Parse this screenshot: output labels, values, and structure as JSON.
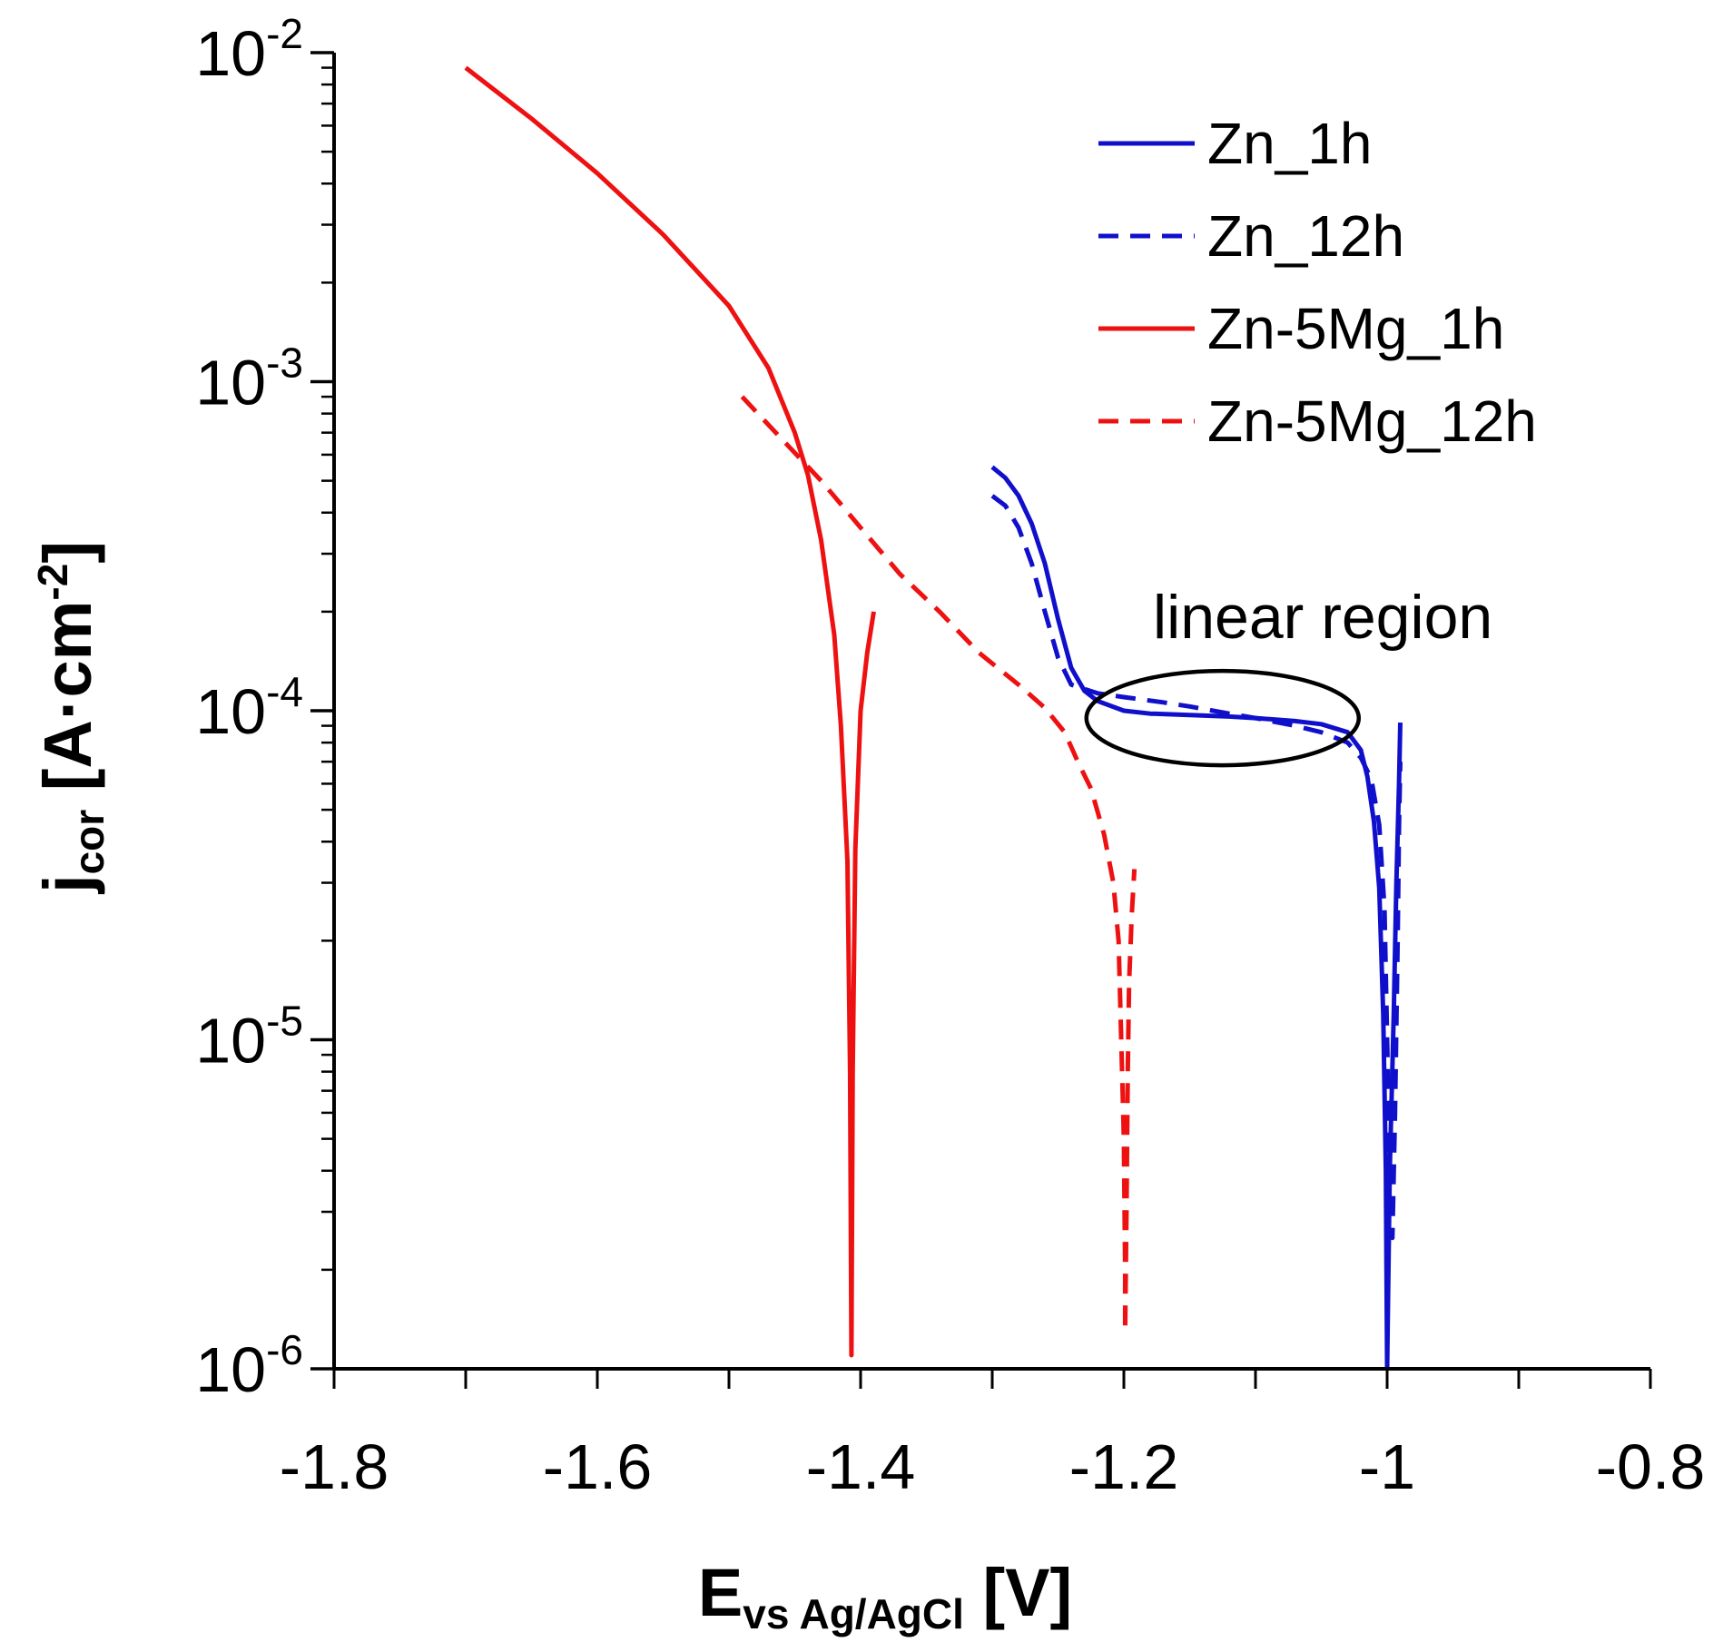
{
  "chart_data": {
    "type": "line",
    "title": "",
    "xlabel": {
      "main": "E",
      "sub": "vs Ag/AgCl",
      "unit": " [V]"
    },
    "ylabel": {
      "main": "j",
      "sub": "cor",
      "unit_pre": " [A·cm",
      "unit_sup": "-2",
      "unit_post": "]"
    },
    "xlim": [
      -1.8,
      -0.8
    ],
    "ylim": [
      1e-06,
      0.01
    ],
    "yscale": "log",
    "x_ticks": [
      {
        "value": -1.8,
        "label": "-1.8"
      },
      {
        "value": -1.6,
        "label": "-1.6"
      },
      {
        "value": -1.4,
        "label": "-1.4"
      },
      {
        "value": -1.2,
        "label": "-1.2"
      },
      {
        "value": -1.0,
        "label": "-1"
      },
      {
        "value": -0.8,
        "label": "-0.8"
      }
    ],
    "y_ticks": [
      {
        "value": 0.01,
        "base": "10",
        "exp": "-2"
      },
      {
        "value": 0.001,
        "base": "10",
        "exp": "-3"
      },
      {
        "value": 0.0001,
        "base": "10",
        "exp": "-4"
      },
      {
        "value": 1e-05,
        "base": "10",
        "exp": "-5"
      },
      {
        "value": 1e-06,
        "base": "10",
        "exp": "-6"
      }
    ],
    "legend_position": "top-right",
    "series": [
      {
        "name": "Zn_1h",
        "color": "#1010cc",
        "dash": "solid",
        "points": [
          [
            -1.3,
            0.00055
          ],
          [
            -1.29,
            0.00051
          ],
          [
            -1.28,
            0.00045
          ],
          [
            -1.27,
            0.00037
          ],
          [
            -1.26,
            0.00028
          ],
          [
            -1.25,
            0.00019
          ],
          [
            -1.24,
            0.000135
          ],
          [
            -1.23,
            0.000115
          ],
          [
            -1.22,
            0.000107
          ],
          [
            -1.2,
            0.0001
          ],
          [
            -1.18,
            9.8e-05
          ],
          [
            -1.15,
            9.7e-05
          ],
          [
            -1.12,
            9.6e-05
          ],
          [
            -1.1,
            9.5e-05
          ],
          [
            -1.07,
            9.3e-05
          ],
          [
            -1.05,
            9.1e-05
          ],
          [
            -1.03,
            8.6e-05
          ],
          [
            -1.02,
            7.6e-05
          ],
          [
            -1.015,
            6.3e-05
          ],
          [
            -1.01,
            4.6e-05
          ],
          [
            -1.006,
            2.9e-05
          ],
          [
            -1.003,
            1.2e-05
          ],
          [
            -1.001,
            4e-06
          ],
          [
            -1.0,
            1e-06
          ],
          [
            -0.998,
            4e-06
          ],
          [
            -0.995,
            1.2e-05
          ],
          [
            -0.993,
            3e-05
          ],
          [
            -0.991,
            6e-05
          ],
          [
            -0.99,
            9.2e-05
          ]
        ]
      },
      {
        "name": "Zn_12h",
        "color": "#1010cc",
        "dash": "dashed",
        "points": [
          [
            -1.3,
            0.00045
          ],
          [
            -1.29,
            0.00042
          ],
          [
            -1.28,
            0.00036
          ],
          [
            -1.27,
            0.00028
          ],
          [
            -1.26,
            0.0002
          ],
          [
            -1.25,
            0.000145
          ],
          [
            -1.24,
            0.00012
          ],
          [
            -1.22,
            0.000113
          ],
          [
            -1.2,
            0.00011
          ],
          [
            -1.17,
            0.000106
          ],
          [
            -1.15,
            0.000103
          ],
          [
            -1.12,
            9.8e-05
          ],
          [
            -1.1,
            9.5e-05
          ],
          [
            -1.07,
            9e-05
          ],
          [
            -1.05,
            8.6e-05
          ],
          [
            -1.03,
            8e-05
          ],
          [
            -1.02,
            7.2e-05
          ],
          [
            -1.012,
            6.2e-05
          ],
          [
            -1.006,
            4.5e-05
          ],
          [
            -1.002,
            2.5e-05
          ],
          [
            -1.0,
            1e-05
          ],
          [
            -0.998,
            4e-06
          ],
          [
            -0.996,
            2.5e-06
          ],
          [
            -0.994,
            6e-06
          ],
          [
            -0.992,
            2e-05
          ],
          [
            -0.991,
            4.5e-05
          ],
          [
            -0.99,
            7e-05
          ]
        ]
      },
      {
        "name": "Zn-5Mg_1h",
        "color": "#ee1111",
        "dash": "solid",
        "points": [
          [
            -1.7,
            0.009
          ],
          [
            -1.65,
            0.0063
          ],
          [
            -1.6,
            0.0043
          ],
          [
            -1.55,
            0.0028
          ],
          [
            -1.5,
            0.0017
          ],
          [
            -1.47,
            0.0011
          ],
          [
            -1.45,
            0.0007
          ],
          [
            -1.44,
            0.00052
          ],
          [
            -1.43,
            0.00033
          ],
          [
            -1.42,
            0.00017
          ],
          [
            -1.415,
            9e-05
          ],
          [
            -1.41,
            3.5e-05
          ],
          [
            -1.408,
            8e-06
          ],
          [
            -1.407,
            1.1e-06
          ],
          [
            -1.406,
            8e-06
          ],
          [
            -1.404,
            3.8e-05
          ],
          [
            -1.4,
            0.0001
          ],
          [
            -1.395,
            0.00015
          ],
          [
            -1.39,
            0.0002
          ]
        ]
      },
      {
        "name": "Zn-5Mg_12h",
        "color": "#ee1111",
        "dash": "dashed",
        "points": [
          [
            -1.49,
            0.0009
          ],
          [
            -1.46,
            0.00067
          ],
          [
            -1.43,
            0.0005
          ],
          [
            -1.4,
            0.00036
          ],
          [
            -1.37,
            0.00026
          ],
          [
            -1.34,
            0.0002
          ],
          [
            -1.31,
            0.00015
          ],
          [
            -1.28,
            0.00012
          ],
          [
            -1.26,
            0.000102
          ],
          [
            -1.245,
            8.6e-05
          ],
          [
            -1.235,
            7e-05
          ],
          [
            -1.225,
            5.8e-05
          ],
          [
            -1.215,
            4.2e-05
          ],
          [
            -1.208,
            3e-05
          ],
          [
            -1.204,
            2e-05
          ],
          [
            -1.202,
            1e-05
          ],
          [
            -1.2,
            5e-06
          ],
          [
            -1.199,
            2e-06
          ],
          [
            -1.199,
            1.3e-06
          ],
          [
            -1.198,
            3e-06
          ],
          [
            -1.197,
            8e-06
          ],
          [
            -1.196,
            1.5e-05
          ],
          [
            -1.194,
            2.4e-05
          ],
          [
            -1.192,
            3.3e-05
          ]
        ]
      }
    ],
    "annotations": [
      {
        "text": "linear region",
        "ellipse_center": [
          -1.125,
          9.5e-05
        ]
      }
    ]
  }
}
